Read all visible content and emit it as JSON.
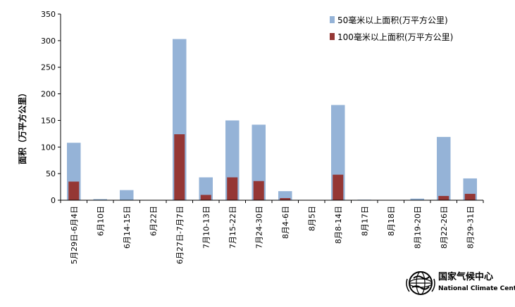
{
  "chart_data": {
    "type": "bar",
    "stacked": false,
    "overlapped": true,
    "ylabel": "面积（万平方公里）",
    "ylim": [
      0,
      350
    ],
    "yticks": [
      0,
      50,
      100,
      150,
      200,
      250,
      300,
      350
    ],
    "legend_position": "top-right",
    "categories": [
      "5月29日-6月4日",
      "6月10日",
      "6月14-15日",
      "6月22日",
      "6月27日-7月7日",
      "7月10-13日",
      "7月15-22日",
      "7月24-30日",
      "8月4-6日",
      "8月5日",
      "8月8-14日",
      "8月17日",
      "8月18日",
      "8月19-20日",
      "8月22-26日",
      "8月29-31日"
    ],
    "series": [
      {
        "name": "50毫米以上面积(万平方公里)",
        "color": "#95b3d7",
        "values": [
          108,
          2,
          19,
          0.5,
          303,
          43,
          150,
          142,
          17,
          0.5,
          179,
          1,
          0.5,
          3,
          119,
          41
        ]
      },
      {
        "name": "100毫米以上面积(万平方公里)",
        "color": "#953735",
        "values": [
          35,
          0,
          0,
          0,
          124,
          10,
          43,
          36,
          4,
          0,
          48,
          0,
          0,
          0,
          8,
          12
        ]
      }
    ]
  },
  "logo": {
    "title": "国家气候中心",
    "subtitle": "National Climate Center"
  }
}
